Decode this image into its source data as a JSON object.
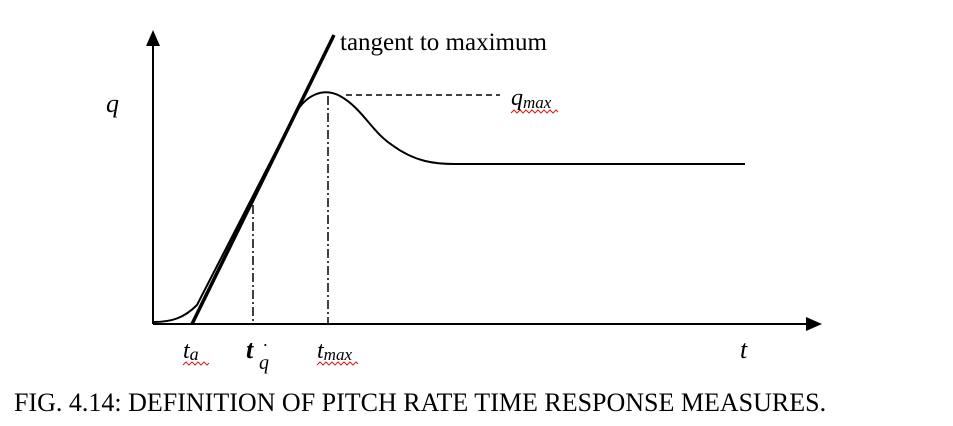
{
  "figure": {
    "caption": "FIG. 4.14: DEFINITION OF PITCH RATE TIME RESPONSE MEASURES.",
    "labels": {
      "y_axis": "q",
      "x_axis": "t",
      "tangent": "tangent to maximum",
      "q_max": {
        "base": "q",
        "sub": "max"
      },
      "t_a": {
        "base": "t",
        "sub": "a"
      },
      "t_qdot": {
        "base": "t",
        "sub": "q",
        "accent": "˙"
      },
      "t_max": {
        "base": "t",
        "sub": "max"
      }
    },
    "colors": {
      "ink": "#000000",
      "spellcheck_underline": "#d02020"
    }
  }
}
